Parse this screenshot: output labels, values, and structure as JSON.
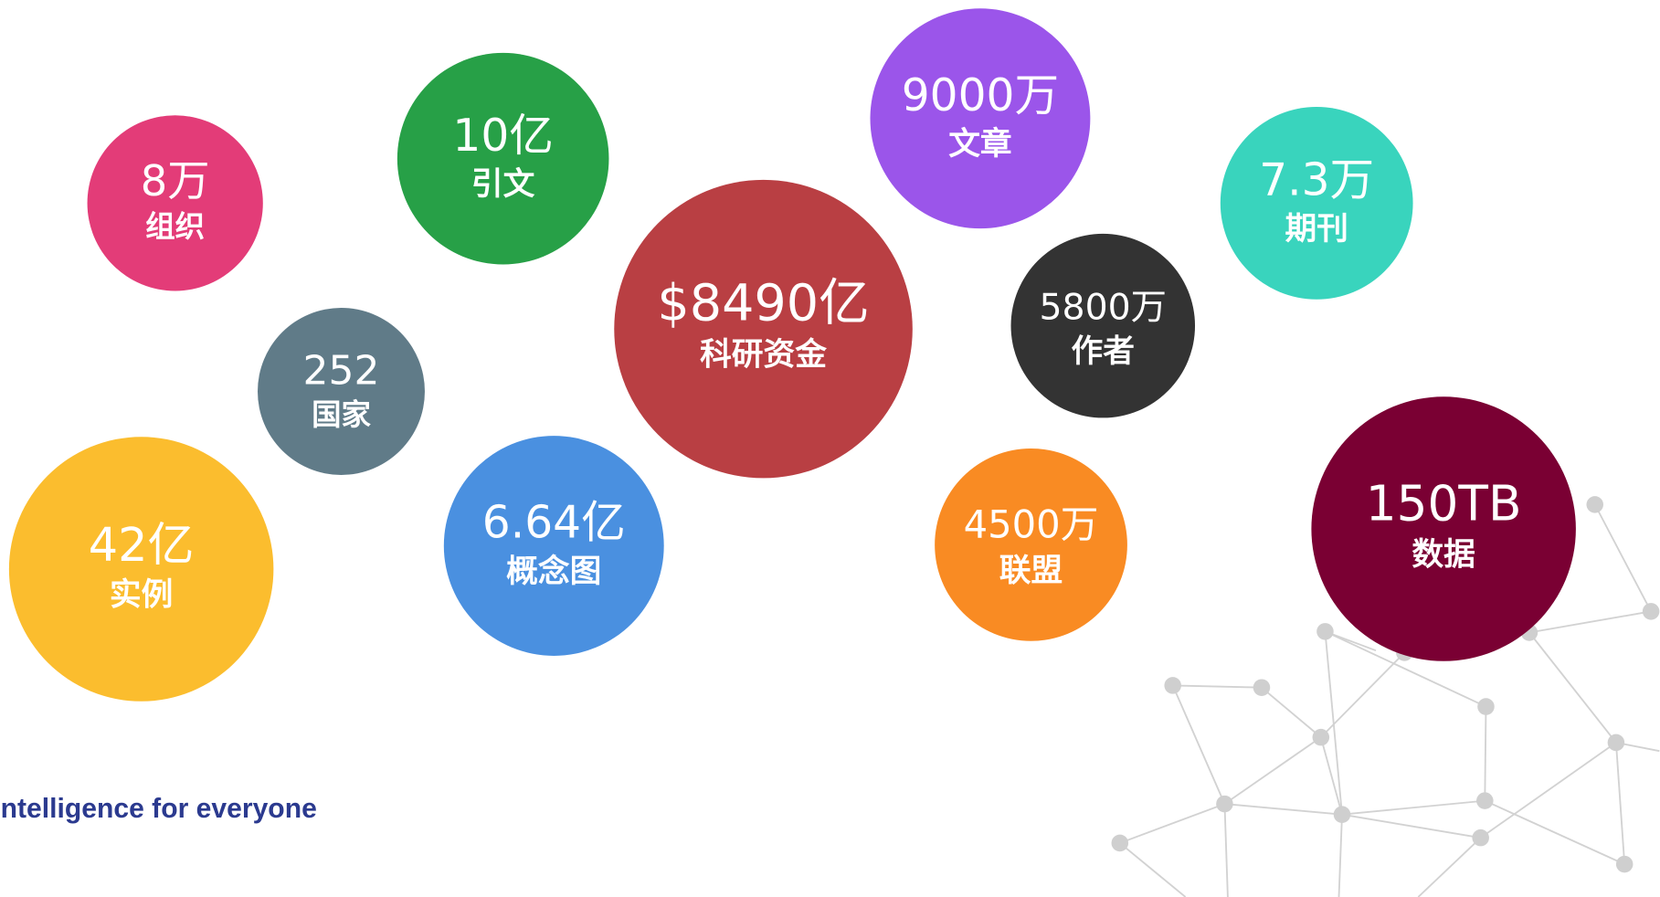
{
  "tagline": "ntelligence for everyone",
  "bubbles": [
    {
      "value": "8万",
      "label": "组织"
    },
    {
      "value": "10亿",
      "label": "引文"
    },
    {
      "value": "252",
      "label": "国家"
    },
    {
      "value": "42亿",
      "label": "实例"
    },
    {
      "value": "6.64亿",
      "label": "概念图"
    },
    {
      "value": "$8490亿",
      "label": "科研资金"
    },
    {
      "value": "9000万",
      "label": "文章"
    },
    {
      "value": "5800万",
      "label": "作者"
    },
    {
      "value": "4500万",
      "label": "联盟"
    },
    {
      "value": "7.3万",
      "label": "期刊"
    },
    {
      "value": "150TB",
      "label": "数据"
    }
  ]
}
